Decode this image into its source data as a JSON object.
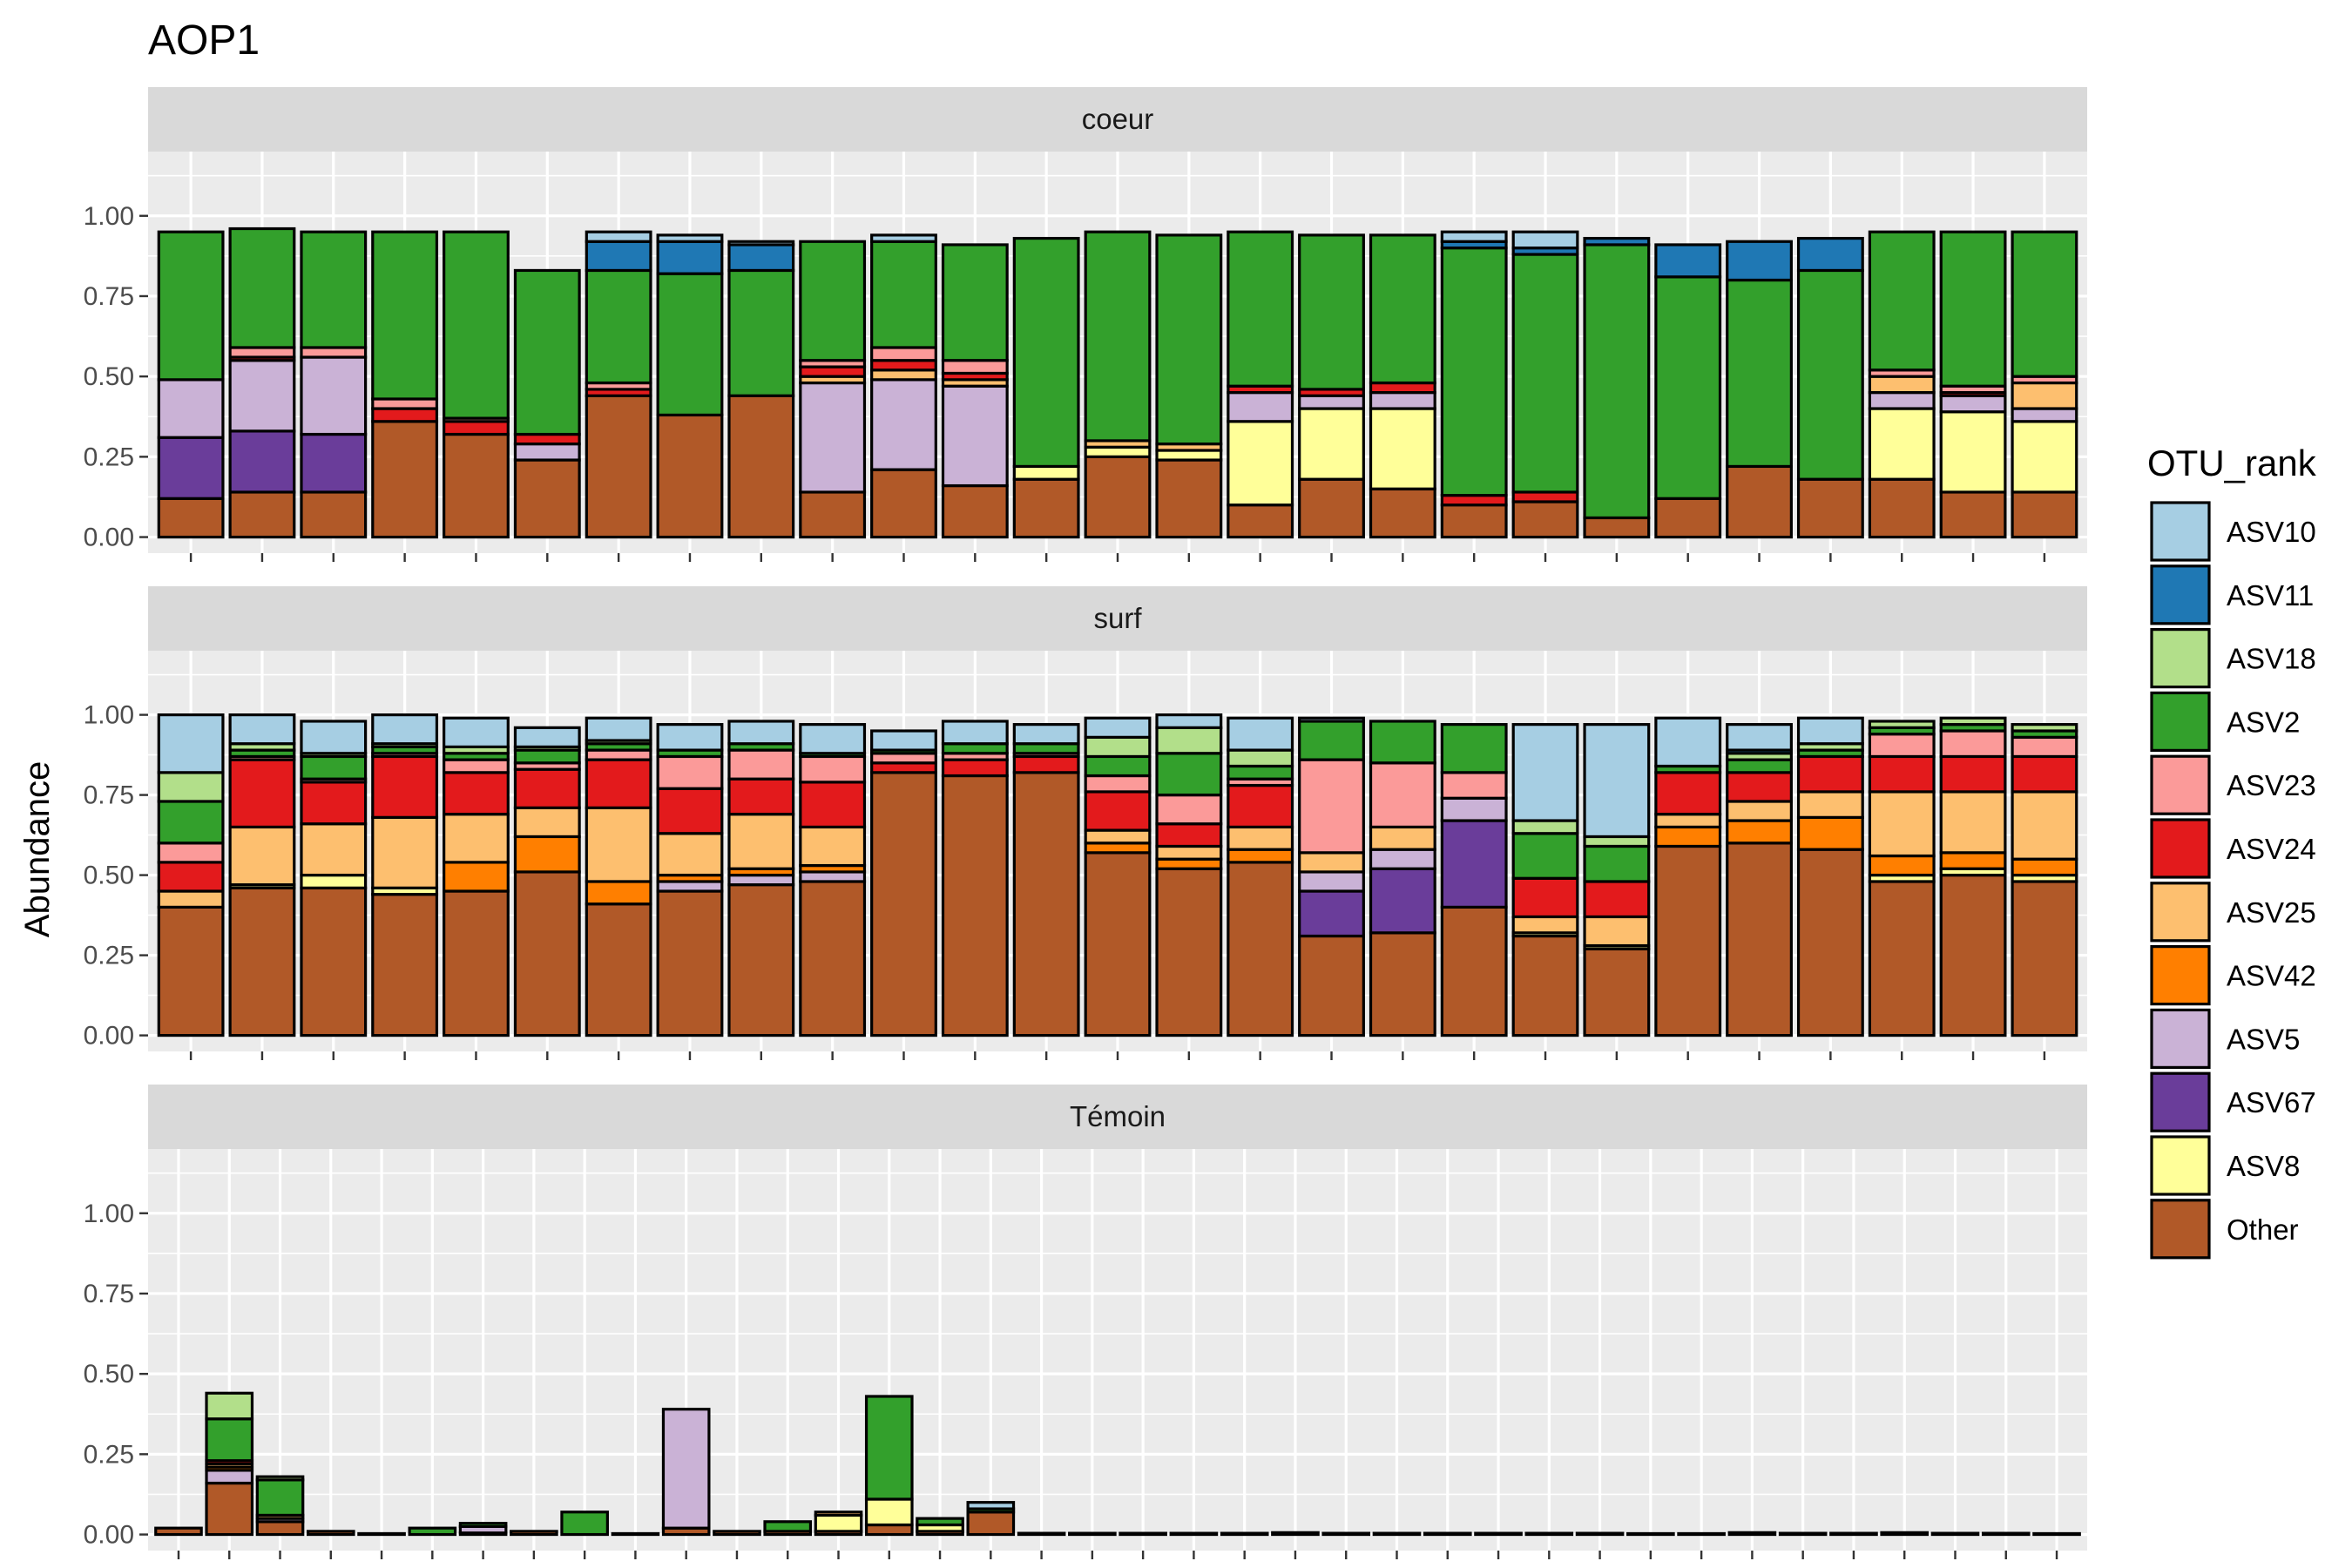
{
  "chart_data": {
    "type": "bar",
    "stacked": true,
    "title": "AOP1",
    "ylabel": "Abundance",
    "xlabel": "",
    "ylim": [
      0,
      1.2
    ],
    "yticks": [
      "0.00",
      "0.25",
      "0.50",
      "0.75",
      "1.00"
    ],
    "grid": true,
    "legend": {
      "title": "OTU_rank",
      "placement": "right"
    },
    "series": [
      {
        "name": "ASV10",
        "color": "#A6CEE3"
      },
      {
        "name": "ASV11",
        "color": "#1F78B4"
      },
      {
        "name": "ASV18",
        "color": "#B2DF8A"
      },
      {
        "name": "ASV2",
        "color": "#33A02C"
      },
      {
        "name": "ASV23",
        "color": "#FB9A99"
      },
      {
        "name": "ASV24",
        "color": "#E31A1C"
      },
      {
        "name": "ASV25",
        "color": "#FDBF6F"
      },
      {
        "name": "ASV42",
        "color": "#FF7F00"
      },
      {
        "name": "ASV5",
        "color": "#CAB2D6"
      },
      {
        "name": "ASV67",
        "color": "#6A3D9A"
      },
      {
        "name": "ASV8",
        "color": "#FFFF99"
      },
      {
        "name": "Other",
        "color": "#B15928"
      }
    ],
    "panels": [
      {
        "label": "coeur",
        "bars": [
          {
            "Other": 0.12,
            "ASV67": 0.19,
            "ASV5": 0.18,
            "ASV2": 0.46
          },
          {
            "Other": 0.14,
            "ASV67": 0.19,
            "ASV5": 0.22,
            "ASV24": 0.01,
            "ASV23": 0.03,
            "ASV2": 0.37
          },
          {
            "Other": 0.14,
            "ASV67": 0.18,
            "ASV5": 0.24,
            "ASV23": 0.03,
            "ASV2": 0.36
          },
          {
            "Other": 0.36,
            "ASV24": 0.04,
            "ASV23": 0.03,
            "ASV2": 0.52
          },
          {
            "Other": 0.32,
            "ASV24": 0.04,
            "ASV23": 0.01,
            "ASV2": 0.58
          },
          {
            "Other": 0.24,
            "ASV5": 0.05,
            "ASV24": 0.03,
            "ASV2": 0.51
          },
          {
            "Other": 0.44,
            "ASV24": 0.02,
            "ASV23": 0.02,
            "ASV2": 0.35,
            "ASV11": 0.09,
            "ASV10": 0.03
          },
          {
            "Other": 0.38,
            "ASV2": 0.44,
            "ASV11": 0.1,
            "ASV10": 0.02
          },
          {
            "Other": 0.44,
            "ASV2": 0.39,
            "ASV11": 0.08,
            "ASV10": 0.01
          },
          {
            "Other": 0.14,
            "ASV5": 0.34,
            "ASV25": 0.02,
            "ASV24": 0.03,
            "ASV23": 0.02,
            "ASV2": 0.37
          },
          {
            "Other": 0.21,
            "ASV5": 0.28,
            "ASV25": 0.03,
            "ASV24": 0.03,
            "ASV23": 0.04,
            "ASV2": 0.33,
            "ASV10": 0.02
          },
          {
            "Other": 0.16,
            "ASV5": 0.31,
            "ASV25": 0.02,
            "ASV24": 0.02,
            "ASV23": 0.04,
            "ASV2": 0.36
          },
          {
            "Other": 0.18,
            "ASV8": 0.04,
            "ASV2": 0.71
          },
          {
            "Other": 0.25,
            "ASV8": 0.03,
            "ASV25": 0.02,
            "ASV2": 0.65
          },
          {
            "Other": 0.24,
            "ASV8": 0.03,
            "ASV25": 0.02,
            "ASV2": 0.65
          },
          {
            "Other": 0.1,
            "ASV8": 0.26,
            "ASV5": 0.09,
            "ASV24": 0.02,
            "ASV2": 0.48
          },
          {
            "Other": 0.18,
            "ASV8": 0.22,
            "ASV5": 0.04,
            "ASV24": 0.02,
            "ASV2": 0.48
          },
          {
            "Other": 0.15,
            "ASV8": 0.25,
            "ASV5": 0.05,
            "ASV24": 0.03,
            "ASV2": 0.46
          },
          {
            "Other": 0.1,
            "ASV24": 0.03,
            "ASV2": 0.77,
            "ASV11": 0.02,
            "ASV10": 0.03
          },
          {
            "Other": 0.11,
            "ASV24": 0.03,
            "ASV2": 0.74,
            "ASV11": 0.02,
            "ASV10": 0.05
          },
          {
            "Other": 0.06,
            "ASV2": 0.85,
            "ASV11": 0.02
          },
          {
            "Other": 0.12,
            "ASV2": 0.69,
            "ASV11": 0.1
          },
          {
            "Other": 0.22,
            "ASV2": 0.58,
            "ASV11": 0.12
          },
          {
            "Other": 0.18,
            "ASV2": 0.65,
            "ASV11": 0.1
          },
          {
            "Other": 0.18,
            "ASV8": 0.22,
            "ASV5": 0.05,
            "ASV25": 0.05,
            "ASV23": 0.02,
            "ASV2": 0.43
          },
          {
            "Other": 0.14,
            "ASV8": 0.25,
            "ASV5": 0.05,
            "ASV24": 0.01,
            "ASV23": 0.02,
            "ASV2": 0.48
          },
          {
            "Other": 0.14,
            "ASV8": 0.22,
            "ASV5": 0.04,
            "ASV25": 0.08,
            "ASV23": 0.02,
            "ASV2": 0.45
          }
        ]
      },
      {
        "label": "surf",
        "bars": [
          {
            "Other": 0.4,
            "ASV25": 0.05,
            "ASV24": 0.09,
            "ASV23": 0.06,
            "ASV2": 0.13,
            "ASV18": 0.09,
            "ASV10": 0.18
          },
          {
            "Other": 0.46,
            "ASV8": 0.01,
            "ASV25": 0.18,
            "ASV24": 0.21,
            "ASV23": 0.01,
            "ASV2": 0.02,
            "ASV18": 0.02,
            "ASV10": 0.09
          },
          {
            "Other": 0.46,
            "ASV8": 0.04,
            "ASV25": 0.16,
            "ASV24": 0.13,
            "ASV23": 0.01,
            "ASV2": 0.07,
            "ASV18": 0.01,
            "ASV10": 0.1
          },
          {
            "Other": 0.44,
            "ASV8": 0.02,
            "ASV25": 0.22,
            "ASV24": 0.19,
            "ASV23": 0.01,
            "ASV2": 0.02,
            "ASV18": 0.01,
            "ASV10": 0.09
          },
          {
            "Other": 0.45,
            "ASV42": 0.09,
            "ASV25": 0.15,
            "ASV24": 0.13,
            "ASV23": 0.04,
            "ASV2": 0.02,
            "ASV18": 0.02,
            "ASV10": 0.09
          },
          {
            "Other": 0.51,
            "ASV42": 0.11,
            "ASV25": 0.09,
            "ASV24": 0.12,
            "ASV23": 0.02,
            "ASV2": 0.04,
            "ASV18": 0.01,
            "ASV10": 0.06
          },
          {
            "Other": 0.41,
            "ASV42": 0.07,
            "ASV25": 0.23,
            "ASV24": 0.15,
            "ASV23": 0.03,
            "ASV2": 0.02,
            "ASV18": 0.01,
            "ASV10": 0.07
          },
          {
            "Other": 0.45,
            "ASV5": 0.03,
            "ASV42": 0.02,
            "ASV25": 0.13,
            "ASV24": 0.14,
            "ASV23": 0.1,
            "ASV2": 0.02,
            "ASV10": 0.08
          },
          {
            "Other": 0.47,
            "ASV5": 0.03,
            "ASV42": 0.02,
            "ASV25": 0.17,
            "ASV24": 0.11,
            "ASV23": 0.09,
            "ASV2": 0.02,
            "ASV10": 0.07
          },
          {
            "Other": 0.48,
            "ASV5": 0.03,
            "ASV42": 0.02,
            "ASV25": 0.12,
            "ASV24": 0.14,
            "ASV23": 0.08,
            "ASV2": 0.01,
            "ASV10": 0.09
          },
          {
            "Other": 0.82,
            "ASV24": 0.03,
            "ASV23": 0.03,
            "ASV2": 0.01,
            "ASV10": 0.06
          },
          {
            "Other": 0.81,
            "ASV24": 0.05,
            "ASV23": 0.02,
            "ASV2": 0.03,
            "ASV10": 0.07
          },
          {
            "Other": 0.82,
            "ASV24": 0.05,
            "ASV23": 0.01,
            "ASV2": 0.03,
            "ASV10": 0.06
          },
          {
            "Other": 0.57,
            "ASV42": 0.03,
            "ASV25": 0.04,
            "ASV24": 0.12,
            "ASV23": 0.05,
            "ASV2": 0.06,
            "ASV18": 0.06,
            "ASV10": 0.06
          },
          {
            "Other": 0.52,
            "ASV42": 0.03,
            "ASV25": 0.04,
            "ASV24": 0.07,
            "ASV23": 0.09,
            "ASV2": 0.13,
            "ASV18": 0.08,
            "ASV10": 0.04
          },
          {
            "Other": 0.54,
            "ASV42": 0.04,
            "ASV25": 0.07,
            "ASV24": 0.13,
            "ASV23": 0.02,
            "ASV2": 0.04,
            "ASV18": 0.05,
            "ASV10": 0.1
          },
          {
            "Other": 0.31,
            "ASV67": 0.14,
            "ASV5": 0.06,
            "ASV25": 0.06,
            "ASV23": 0.29,
            "ASV2": 0.12,
            "ASV10": 0.01
          },
          {
            "Other": 0.32,
            "ASV67": 0.2,
            "ASV5": 0.06,
            "ASV25": 0.07,
            "ASV23": 0.2,
            "ASV2": 0.13
          },
          {
            "Other": 0.4,
            "ASV67": 0.27,
            "ASV5": 0.07,
            "ASV23": 0.08,
            "ASV2": 0.15
          },
          {
            "Other": 0.31,
            "ASV8": 0.01,
            "ASV25": 0.05,
            "ASV24": 0.12,
            "ASV2": 0.14,
            "ASV18": 0.04,
            "ASV10": 0.3
          },
          {
            "Other": 0.27,
            "ASV8": 0.01,
            "ASV25": 0.09,
            "ASV24": 0.11,
            "ASV2": 0.11,
            "ASV18": 0.03,
            "ASV10": 0.35
          },
          {
            "Other": 0.59,
            "ASV42": 0.06,
            "ASV25": 0.04,
            "ASV24": 0.13,
            "ASV2": 0.02,
            "ASV10": 0.15
          },
          {
            "Other": 0.6,
            "ASV42": 0.07,
            "ASV25": 0.06,
            "ASV24": 0.09,
            "ASV2": 0.04,
            "ASV18": 0.02,
            "ASV11": 0.01,
            "ASV10": 0.08
          },
          {
            "Other": 0.58,
            "ASV42": 0.1,
            "ASV25": 0.08,
            "ASV24": 0.11,
            "ASV2": 0.02,
            "ASV18": 0.02,
            "ASV10": 0.08
          },
          {
            "Other": 0.48,
            "ASV8": 0.02,
            "ASV42": 0.06,
            "ASV25": 0.2,
            "ASV24": 0.11,
            "ASV23": 0.07,
            "ASV2": 0.02,
            "ASV18": 0.02
          },
          {
            "Other": 0.5,
            "ASV8": 0.02,
            "ASV42": 0.05,
            "ASV25": 0.19,
            "ASV24": 0.11,
            "ASV23": 0.08,
            "ASV2": 0.02,
            "ASV18": 0.02
          },
          {
            "Other": 0.48,
            "ASV8": 0.02,
            "ASV42": 0.05,
            "ASV25": 0.21,
            "ASV24": 0.11,
            "ASV23": 0.06,
            "ASV2": 0.02,
            "ASV18": 0.02
          }
        ]
      },
      {
        "label": "Témoin",
        "bars": [
          {
            "Other": 0.02
          },
          {
            "Other": 0.16,
            "ASV5": 0.04,
            "ASV25": 0.01,
            "ASV42": 0.01,
            "ASV24": 0.01,
            "ASV2": 0.13,
            "ASV18": 0.08
          },
          {
            "Other": 0.04,
            "ASV5": 0.01,
            "ASV25": 0.01,
            "ASV2": 0.11,
            "ASV18": 0.01
          },
          {
            "Other": 0.01
          },
          {
            "Other": 0.003
          },
          {
            "ASV2": 0.02
          },
          {
            "Other": 0.005,
            "ASV5": 0.02,
            "ASV2": 0.01
          },
          {
            "Other": 0.01
          },
          {
            "ASV2": 0.07
          },
          {
            "Other": 0.003
          },
          {
            "Other": 0.02,
            "ASV5": 0.37
          },
          {
            "Other": 0.01
          },
          {
            "Other": 0.01,
            "ASV2": 0.03
          },
          {
            "Other": 0.01,
            "ASV8": 0.05,
            "ASV25": 0.01
          },
          {
            "Other": 0.03,
            "ASV8": 0.08,
            "ASV2": 0.32
          },
          {
            "Other": 0.01,
            "ASV8": 0.02,
            "ASV2": 0.02
          },
          {
            "Other": 0.07,
            "ASV10": 0.02,
            "ASV2": 0.01
          },
          {
            "Other": 0.004
          },
          {
            "Other": 0.004
          },
          {
            "Other": 0.004
          },
          {
            "Other": 0.004
          },
          {
            "Other": 0.004
          },
          {
            "Other": 0.006
          },
          {
            "Other": 0.004
          },
          {
            "Other": 0.004
          },
          {
            "Other": 0.004
          },
          {
            "Other": 0.004
          },
          {
            "Other": 0.004
          },
          {
            "Other": 0.004
          },
          {
            "Other": 0.003
          },
          {
            "Other": 0.003
          },
          {
            "Other": 0.006
          },
          {
            "Other": 0.004
          },
          {
            "Other": 0.004
          },
          {
            "Other": 0.006
          },
          {
            "Other": 0.004
          },
          {
            "Other": 0.004
          },
          {
            "Other": 0.003
          }
        ]
      }
    ]
  }
}
